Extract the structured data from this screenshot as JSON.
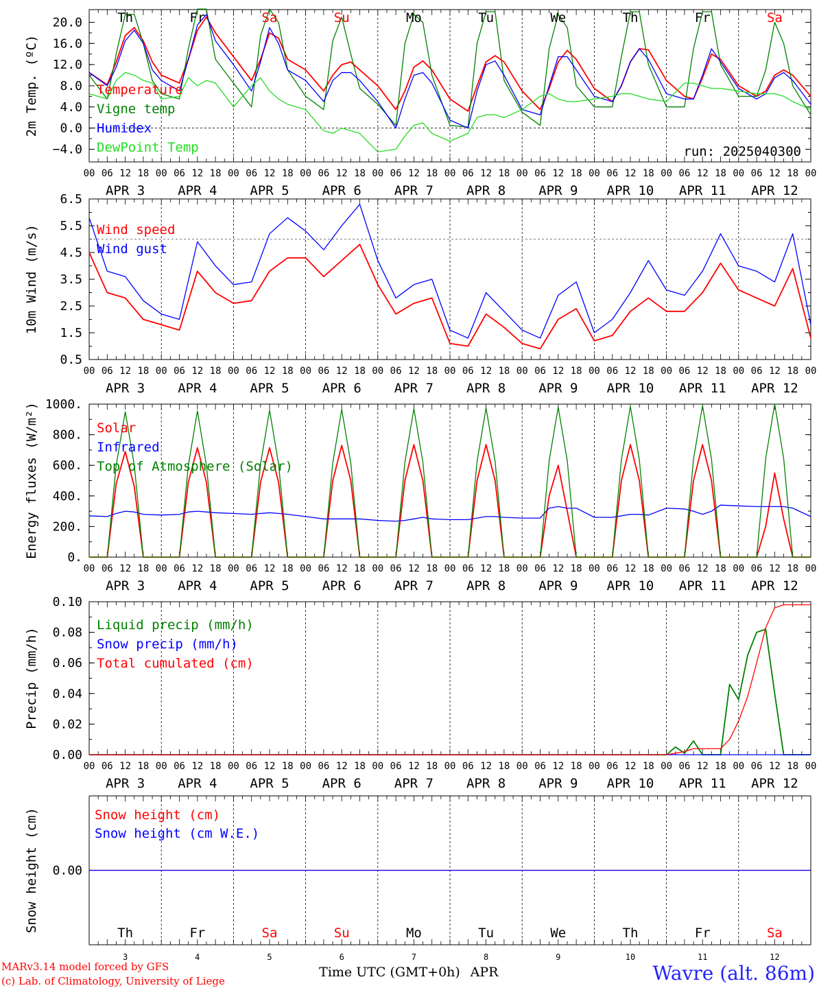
{
  "run_label": "run: 2025040300",
  "footer": {
    "model": "MARv3.14 model forced by GFS",
    "lab": "(c) Lab. of Climatology, University of Liege",
    "xlabel": "Time UTC (GMT+0h)",
    "month": "APR",
    "station": "Wavre (alt. 86m)"
  },
  "colors": {
    "red": "#ff0000",
    "green": "#008000",
    "blue": "#0000ff",
    "light_green": "#22dd22",
    "weekend": "#ff0000",
    "weekday": "#000000",
    "station": "#2222ff"
  },
  "days": [
    {
      "abbr": "Th",
      "num": "3",
      "date": "APR  3",
      "weekend": false
    },
    {
      "abbr": "Fr",
      "num": "4",
      "date": "APR  4",
      "weekend": false
    },
    {
      "abbr": "Sa",
      "num": "5",
      "date": "APR  5",
      "weekend": true
    },
    {
      "abbr": "Su",
      "num": "6",
      "date": "APR  6",
      "weekend": true
    },
    {
      "abbr": "Mo",
      "num": "7",
      "date": "APR  7",
      "weekend": false
    },
    {
      "abbr": "Tu",
      "num": "8",
      "date": "APR  8",
      "weekend": false
    },
    {
      "abbr": "We",
      "num": "9",
      "date": "APR  9",
      "weekend": false
    },
    {
      "abbr": "Th",
      "num": "10",
      "date": "APR 10",
      "weekend": false
    },
    {
      "abbr": "Fr",
      "num": "11",
      "date": "APR 11",
      "weekend": false
    },
    {
      "abbr": "Sa",
      "num": "12",
      "date": "APR 12",
      "weekend": true
    }
  ],
  "hour_ticks": [
    "00",
    "06",
    "12",
    "18"
  ],
  "chart_data": [
    {
      "type": "line",
      "ylabel": "2m Temp. (ºC)",
      "ylim": [
        -6.4,
        22.4
      ],
      "yticks": [
        -4,
        0,
        4,
        8,
        12,
        16,
        20
      ],
      "ytick_labels": [
        "−4.0",
        "0.0",
        "4.0",
        "8.0",
        "12.0",
        "16.0",
        "20.0"
      ],
      "zero_line": 0,
      "x_hours": [
        0,
        6,
        9,
        12,
        15,
        18,
        21,
        24,
        30,
        33,
        36,
        39,
        42,
        48,
        54,
        57,
        60,
        63,
        66,
        72,
        78,
        81,
        84,
        87,
        90,
        96,
        102,
        105,
        108,
        111,
        114,
        120,
        126,
        129,
        132,
        135,
        138,
        144,
        150,
        153,
        156,
        159,
        162,
        168,
        174,
        177,
        180,
        183,
        186,
        192,
        198,
        201,
        204,
        207,
        210,
        216,
        222,
        225,
        228,
        231,
        234,
        240
      ],
      "series": [
        {
          "name": "Temperature",
          "color": "#ff0000",
          "values": [
            10.5,
            8.2,
            12.5,
            17.5,
            19.0,
            16.5,
            12.5,
            10.0,
            8.5,
            13.0,
            18.5,
            21.0,
            18.0,
            13.5,
            9.0,
            13.0,
            18.0,
            17.0,
            13.0,
            11.0,
            7.0,
            10.0,
            12.0,
            12.5,
            11.0,
            8.0,
            3.5,
            7.0,
            11.5,
            12.7,
            11.0,
            5.5,
            3.2,
            8.0,
            12.5,
            13.7,
            12.5,
            7.0,
            3.5,
            7.5,
            12.5,
            14.7,
            13.0,
            7.5,
            5.0,
            8.0,
            12.5,
            15.0,
            14.8,
            9.0,
            6.0,
            5.5,
            9.5,
            14.0,
            13.0,
            8.0,
            6.0,
            7.0,
            10.0,
            11.0,
            10.0,
            6.0
          ]
        },
        {
          "name": "Vigne temp",
          "color": "#008000",
          "values": [
            10.0,
            5.5,
            14.0,
            21.5,
            21.5,
            16.0,
            9.0,
            6.5,
            5.5,
            15.0,
            22.5,
            22.5,
            13.0,
            8.5,
            4.0,
            17.5,
            22.5,
            20.0,
            11.0,
            6.0,
            3.5,
            16.5,
            21.0,
            14.0,
            7.5,
            4.5,
            0.5,
            16.0,
            21.5,
            20.0,
            10.0,
            0.5,
            0.2,
            16.0,
            22.0,
            22.0,
            9.0,
            3.0,
            0.5,
            15.0,
            21.5,
            19.0,
            8.0,
            4.0,
            4.0,
            13.5,
            22.0,
            22.0,
            12.0,
            4.0,
            4.0,
            15.0,
            22.0,
            22.0,
            12.0,
            6.0,
            6.0,
            11.0,
            20.0,
            16.0,
            8.0,
            2.5
          ]
        },
        {
          "name": "Humidex",
          "color": "#0000ff",
          "values": [
            10.5,
            8.0,
            11.5,
            16.5,
            18.5,
            16.0,
            11.0,
            9.0,
            7.0,
            13.0,
            19.5,
            21.5,
            16.5,
            12.0,
            7.0,
            12.5,
            19.0,
            16.0,
            11.0,
            9.0,
            5.0,
            9.0,
            10.5,
            10.5,
            9.0,
            5.0,
            0.0,
            5.5,
            10.0,
            10.5,
            8.5,
            1.5,
            0.0,
            7.0,
            12.0,
            12.7,
            10.0,
            3.5,
            2.5,
            8.0,
            13.5,
            13.5,
            11.0,
            6.0,
            5.0,
            8.0,
            12.5,
            15.0,
            13.0,
            6.5,
            5.5,
            5.5,
            10.0,
            15.0,
            12.5,
            7.5,
            5.5,
            6.5,
            9.5,
            10.5,
            9.0,
            4.5
          ]
        },
        {
          "name": "DewPoint Temp",
          "color": "#22dd22",
          "values": [
            6.5,
            5.5,
            9.0,
            10.5,
            10.0,
            9.0,
            8.5,
            5.5,
            6.0,
            9.5,
            8.0,
            9.0,
            8.5,
            4.0,
            8.0,
            9.5,
            7.0,
            5.5,
            4.5,
            3.5,
            -0.5,
            -1.0,
            0.0,
            -0.5,
            -1.0,
            -4.5,
            -4.0,
            -1.5,
            0.5,
            1.0,
            -1.0,
            -2.5,
            -1.0,
            2.0,
            2.5,
            2.5,
            2.0,
            3.5,
            6.0,
            6.5,
            5.5,
            5.0,
            5.0,
            5.5,
            6.0,
            6.5,
            6.5,
            6.0,
            5.5,
            5.0,
            8.5,
            8.5,
            8.0,
            7.5,
            7.5,
            7.0,
            6.5,
            6.5,
            6.5,
            6.0,
            5.0,
            3.5
          ]
        }
      ]
    },
    {
      "type": "line",
      "ylabel": "10m Wind (m/s)",
      "ylim": [
        0.5,
        6.5
      ],
      "yticks": [
        0.5,
        1.5,
        2.5,
        3.5,
        4.5,
        5.5,
        6.5
      ],
      "ytick_labels": [
        "0.5",
        "1.5",
        "2.5",
        "3.5",
        "4.5",
        "5.5",
        "6.5"
      ],
      "ref_line": 5.0,
      "x_hours": [
        0,
        6,
        12,
        18,
        24,
        30,
        36,
        42,
        48,
        54,
        60,
        66,
        72,
        78,
        84,
        90,
        96,
        102,
        108,
        114,
        120,
        126,
        132,
        138,
        144,
        150,
        156,
        162,
        168,
        174,
        180,
        186,
        192,
        198,
        204,
        210,
        216,
        222,
        228,
        234,
        240
      ],
      "series": [
        {
          "name": "Wind speed",
          "color": "#ff0000",
          "values": [
            4.5,
            3.0,
            2.8,
            2.0,
            1.8,
            1.6,
            3.8,
            3.0,
            2.6,
            2.7,
            3.8,
            4.3,
            4.3,
            3.6,
            4.2,
            4.8,
            3.3,
            2.2,
            2.6,
            2.8,
            1.1,
            1.0,
            2.2,
            1.7,
            1.1,
            0.9,
            2.0,
            2.4,
            1.2,
            1.4,
            2.3,
            2.8,
            2.3,
            2.3,
            3.0,
            4.1,
            3.1,
            2.8,
            2.5,
            3.9,
            1.3
          ]
        },
        {
          "name": "Wind gust",
          "color": "#0000ff",
          "values": [
            5.8,
            3.8,
            3.6,
            2.7,
            2.2,
            2.0,
            4.9,
            4.0,
            3.3,
            3.4,
            5.2,
            5.8,
            5.3,
            4.6,
            5.5,
            6.3,
            4.2,
            2.8,
            3.3,
            3.5,
            1.6,
            1.3,
            3.0,
            2.3,
            1.6,
            1.3,
            2.9,
            3.4,
            1.5,
            2.0,
            3.0,
            4.2,
            3.1,
            2.9,
            3.8,
            5.2,
            4.0,
            3.8,
            3.4,
            5.2,
            1.8
          ]
        }
      ]
    },
    {
      "type": "line",
      "ylabel": "Energy fluxes (W/m²)",
      "ylim": [
        0,
        1000
      ],
      "yticks": [
        0,
        200,
        400,
        600,
        800,
        1000
      ],
      "ytick_labels": [
        "0.",
        "200.",
        "400.",
        "600.",
        "800.",
        "1000."
      ],
      "x_hours": [
        0,
        6,
        9,
        12,
        15,
        18,
        24,
        30,
        33,
        36,
        39,
        42,
        48,
        54,
        57,
        60,
        63,
        66,
        72,
        78,
        81,
        84,
        87,
        90,
        96,
        102,
        105,
        108,
        111,
        114,
        120,
        126,
        129,
        132,
        135,
        138,
        144,
        150,
        153,
        156,
        159,
        162,
        168,
        174,
        177,
        180,
        183,
        186,
        192,
        198,
        201,
        204,
        207,
        210,
        216,
        222,
        225,
        228,
        231,
        234,
        240
      ],
      "series": [
        {
          "name": "Solar",
          "color": "#ff0000",
          "values": [
            0,
            0,
            480,
            690,
            460,
            0,
            0,
            0,
            490,
            715,
            490,
            0,
            0,
            0,
            490,
            715,
            490,
            0,
            0,
            0,
            500,
            730,
            500,
            0,
            0,
            0,
            500,
            735,
            500,
            0,
            0,
            0,
            500,
            735,
            500,
            0,
            0,
            0,
            400,
            600,
            300,
            0,
            0,
            0,
            500,
            735,
            500,
            0,
            0,
            0,
            500,
            735,
            500,
            0,
            0,
            0,
            200,
            550,
            250,
            0,
            0
          ]
        },
        {
          "name": "Infrared",
          "color": "#0000ff",
          "values": [
            270,
            265,
            285,
            300,
            295,
            280,
            275,
            280,
            295,
            300,
            295,
            290,
            285,
            280,
            285,
            290,
            285,
            280,
            265,
            250,
            250,
            250,
            250,
            250,
            240,
            235,
            240,
            250,
            260,
            250,
            245,
            245,
            255,
            265,
            265,
            260,
            255,
            255,
            320,
            330,
            320,
            320,
            260,
            260,
            270,
            280,
            280,
            275,
            320,
            315,
            300,
            280,
            300,
            340,
            335,
            330,
            330,
            330,
            330,
            320,
            265
          ]
        },
        {
          "name": "Top of Atmosphere (Solar)",
          "color": "#008000",
          "values": [
            0,
            0,
            600,
            950,
            600,
            0,
            0,
            0,
            600,
            955,
            600,
            0,
            0,
            0,
            610,
            960,
            610,
            0,
            0,
            0,
            615,
            965,
            615,
            0,
            0,
            0,
            620,
            970,
            620,
            0,
            0,
            0,
            625,
            975,
            625,
            0,
            0,
            0,
            630,
            980,
            630,
            0,
            0,
            0,
            635,
            985,
            635,
            0,
            0,
            0,
            640,
            990,
            640,
            0,
            0,
            0,
            645,
            1000,
            645,
            0,
            0
          ]
        }
      ]
    },
    {
      "type": "line",
      "ylabel": "Precip (mm/h)",
      "ylim": [
        0,
        0.1
      ],
      "yticks": [
        0,
        0.02,
        0.04,
        0.06,
        0.08,
        0.1
      ],
      "ytick_labels": [
        "0.00",
        "0.02",
        "0.04",
        "0.06",
        "0.08",
        "0.10"
      ],
      "x_hours": [
        0,
        192,
        195,
        198,
        201,
        204,
        207,
        210,
        213,
        216,
        219,
        222,
        225,
        228,
        231,
        234,
        237,
        240
      ],
      "series": [
        {
          "name": "Liquid precip (mm/h)",
          "color": "#008000",
          "values": [
            0,
            0,
            0.005,
            0.001,
            0.009,
            0,
            0,
            0,
            0.046,
            0.036,
            0.065,
            0.08,
            0.082,
            0.04,
            0,
            0,
            0,
            0
          ]
        },
        {
          "name": "Snow precip (mm/h)",
          "color": "#0000ff",
          "values": [
            0,
            0,
            0,
            0,
            0,
            0,
            0,
            0,
            0,
            0,
            0,
            0,
            0,
            0,
            0,
            0,
            0,
            0
          ]
        },
        {
          "name": "Total cumulated (cm)",
          "color": "#ff0000",
          "values": [
            0,
            0,
            0.001,
            0.002,
            0.004,
            0.004,
            0.004,
            0.004,
            0.01,
            0.022,
            0.038,
            0.06,
            0.083,
            0.096,
            0.098,
            0.098,
            0.098,
            0.098
          ]
        }
      ]
    },
    {
      "type": "line",
      "ylabel": "Snow height (cm)",
      "yticks": [
        0
      ],
      "ytick_labels": [
        "0.00"
      ],
      "x_hours": [
        0,
        240
      ],
      "series": [
        {
          "name": "Snow height (cm)",
          "color": "#ff0000",
          "values": [
            0,
            0
          ]
        },
        {
          "name": "Snow height (cm W.E.)",
          "color": "#0000ff",
          "values": [
            0,
            0
          ]
        }
      ]
    }
  ]
}
